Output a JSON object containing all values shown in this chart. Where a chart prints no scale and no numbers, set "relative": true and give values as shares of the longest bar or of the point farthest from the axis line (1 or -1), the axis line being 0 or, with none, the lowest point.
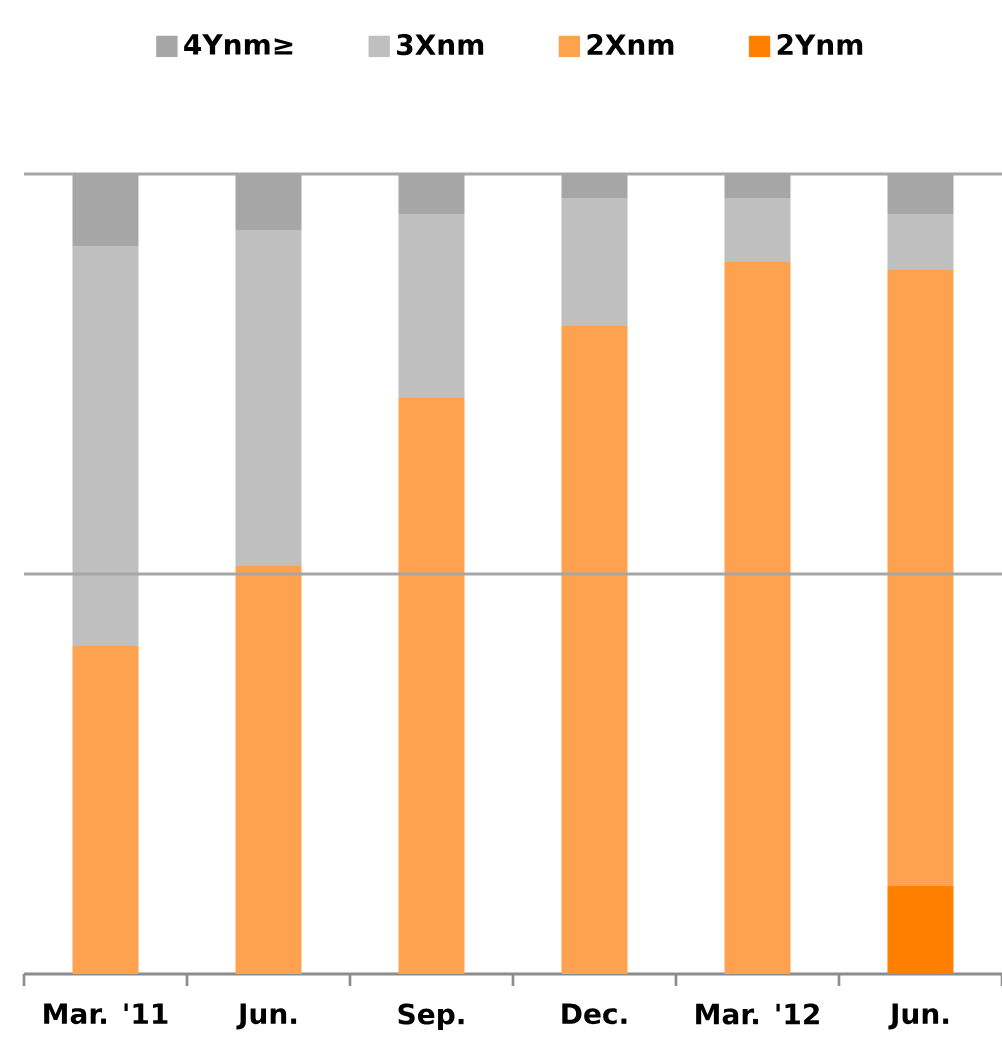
{
  "chart_data": {
    "type": "bar",
    "stacked": true,
    "relative": true,
    "legend": "top",
    "ref_lines": [
      {
        "axis": "y",
        "value": 0.5,
        "color": "#a6a6a6"
      },
      {
        "axis": "y",
        "value": 1,
        "color": "#a6a6a6"
      }
    ],
    "categories": [
      "Mar. '11",
      "Jun.",
      "Sep.",
      "Dec.",
      "Mar. '12",
      "Jun."
    ],
    "series": [
      {
        "name": "2Ynm",
        "color": "#ff7f00",
        "values": [
          0,
          0,
          0,
          0,
          0,
          0.11
        ]
      },
      {
        "name": "2Xnm",
        "color": "#ffa24f",
        "values": [
          0.41,
          0.51,
          0.72,
          0.81,
          0.89,
          0.77
        ]
      },
      {
        "name": "3Xnm",
        "color": "#bfbfbf",
        "values": [
          0.5,
          0.42,
          0.23,
          0.16,
          0.08,
          0.07
        ]
      },
      {
        "name": "4Ynm≥",
        "color": "#a6a6a6",
        "values": [
          0.09,
          0.07,
          0.05,
          0.03,
          0.03,
          0.05
        ]
      }
    ]
  }
}
